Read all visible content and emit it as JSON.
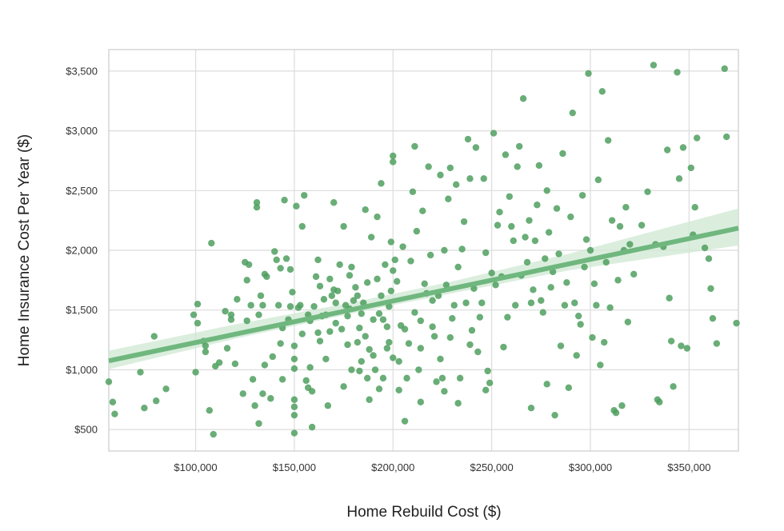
{
  "chart_data": {
    "type": "scatter",
    "title": "",
    "xlabel": "Home Rebuild Cost ($)",
    "ylabel": "Home Insurance Cost Per Year ($)",
    "xlim": [
      56000,
      375000
    ],
    "ylim": [
      320,
      3680
    ],
    "grid": true,
    "legend": "none",
    "colors": {
      "points": "#4f9f5f",
      "regression": "#6fb77e",
      "ci_band": "#cfe8d3",
      "grid": "#dcdcdc",
      "frame": "#cccccc"
    },
    "x_ticks": [
      {
        "value": 100000,
        "label": "$100,000"
      },
      {
        "value": 150000,
        "label": "$150,000"
      },
      {
        "value": 200000,
        "label": "$200,000"
      },
      {
        "value": 250000,
        "label": "$250,000"
      },
      {
        "value": 300000,
        "label": "$300,000"
      },
      {
        "value": 350000,
        "label": "$350,000"
      }
    ],
    "y_ticks": [
      {
        "value": 500,
        "label": "$500"
      },
      {
        "value": 1000,
        "label": "$1,000"
      },
      {
        "value": 1500,
        "label": "$1,500"
      },
      {
        "value": 2000,
        "label": "$2,000"
      },
      {
        "value": 2500,
        "label": "$2,500"
      },
      {
        "value": 3000,
        "label": "$3,000"
      },
      {
        "value": 3500,
        "label": "$3,500"
      }
    ],
    "regression": {
      "x": [
        56000,
        375000
      ],
      "y": [
        1075,
        2185
      ]
    },
    "ci_band": {
      "x": [
        56000,
        120000,
        180000,
        230000,
        290000,
        375000
      ],
      "lower": [
        1005,
        1260,
        1475,
        1640,
        1835,
        2040
      ],
      "upper": [
        1160,
        1380,
        1565,
        1740,
        1975,
        2350
      ]
    },
    "points": [
      [
        56000,
        900
      ],
      [
        58000,
        730
      ],
      [
        59000,
        630
      ],
      [
        72000,
        980
      ],
      [
        74000,
        680
      ],
      [
        79000,
        1280
      ],
      [
        80000,
        740
      ],
      [
        85000,
        840
      ],
      [
        99000,
        1460
      ],
      [
        100000,
        980
      ],
      [
        101000,
        1550
      ],
      [
        101000,
        1390
      ],
      [
        104000,
        1240
      ],
      [
        105000,
        1200
      ],
      [
        105000,
        1150
      ],
      [
        107000,
        660
      ],
      [
        108000,
        2060
      ],
      [
        109000,
        460
      ],
      [
        110000,
        1030
      ],
      [
        112000,
        1060
      ],
      [
        115000,
        1490
      ],
      [
        116000,
        1180
      ],
      [
        118000,
        1460
      ],
      [
        118000,
        1420
      ],
      [
        120000,
        1050
      ],
      [
        121000,
        1590
      ],
      [
        124000,
        800
      ],
      [
        125000,
        1900
      ],
      [
        126000,
        1750
      ],
      [
        127000,
        1880
      ],
      [
        128000,
        1540
      ],
      [
        129000,
        920
      ],
      [
        130000,
        700
      ],
      [
        131000,
        2400
      ],
      [
        131000,
        2360
      ],
      [
        132000,
        550
      ],
      [
        133000,
        1620
      ],
      [
        134000,
        1540
      ],
      [
        134000,
        800
      ],
      [
        135000,
        1040
      ],
      [
        135000,
        1800
      ],
      [
        136000,
        1780
      ],
      [
        138000,
        760
      ],
      [
        140000,
        1990
      ],
      [
        141000,
        1920
      ],
      [
        142000,
        1540
      ],
      [
        143000,
        1850
      ],
      [
        143000,
        1220
      ],
      [
        144000,
        920
      ],
      [
        145000,
        2420
      ],
      [
        146000,
        1930
      ],
      [
        147000,
        1420
      ],
      [
        148000,
        1840
      ],
      [
        149000,
        1650
      ],
      [
        150000,
        750
      ],
      [
        150000,
        1200
      ],
      [
        150000,
        1090
      ],
      [
        150000,
        1010
      ],
      [
        150000,
        470
      ],
      [
        150000,
        690
      ],
      [
        150000,
        620
      ],
      [
        151000,
        2370
      ],
      [
        152000,
        1520
      ],
      [
        153000,
        1540
      ],
      [
        154000,
        2200
      ],
      [
        155000,
        2460
      ],
      [
        156000,
        910
      ],
      [
        157000,
        850
      ],
      [
        158000,
        1020
      ],
      [
        158000,
        1410
      ],
      [
        159000,
        820
      ],
      [
        160000,
        1530
      ],
      [
        161000,
        1780
      ],
      [
        162000,
        1920
      ],
      [
        163000,
        1700
      ],
      [
        164000,
        1450
      ],
      [
        165000,
        1590
      ],
      [
        166000,
        1460
      ],
      [
        167000,
        700
      ],
      [
        168000,
        1760
      ],
      [
        168000,
        1320
      ],
      [
        169000,
        1620
      ],
      [
        170000,
        2400
      ],
      [
        170000,
        1670
      ],
      [
        171000,
        1560
      ],
      [
        172000,
        1660
      ],
      [
        173000,
        1880
      ],
      [
        174000,
        1340
      ],
      [
        175000,
        2200
      ],
      [
        176000,
        1540
      ],
      [
        177000,
        1450
      ],
      [
        177000,
        1210
      ],
      [
        178000,
        1790
      ],
      [
        179000,
        1860
      ],
      [
        179000,
        1000
      ],
      [
        180000,
        1580
      ],
      [
        181000,
        1690
      ],
      [
        182000,
        1620
      ],
      [
        182000,
        1230
      ],
      [
        183000,
        1350
      ],
      [
        184000,
        1070
      ],
      [
        184000,
        1470
      ],
      [
        185000,
        1560
      ],
      [
        186000,
        2340
      ],
      [
        187000,
        930
      ],
      [
        187000,
        1730
      ],
      [
        188000,
        750
      ],
      [
        189000,
        2110
      ],
      [
        190000,
        1420
      ],
      [
        190000,
        1120
      ],
      [
        191000,
        1000
      ],
      [
        192000,
        2280
      ],
      [
        192000,
        1760
      ],
      [
        193000,
        1470
      ],
      [
        194000,
        1620
      ],
      [
        194000,
        2560
      ],
      [
        195000,
        930
      ],
      [
        196000,
        1880
      ],
      [
        197000,
        1360
      ],
      [
        198000,
        1530
      ],
      [
        198000,
        1230
      ],
      [
        199000,
        2070
      ],
      [
        199000,
        1660
      ],
      [
        200000,
        2740
      ],
      [
        200000,
        2790
      ],
      [
        200000,
        1830
      ],
      [
        200000,
        1100
      ],
      [
        201000,
        1920
      ],
      [
        202000,
        1740
      ],
      [
        203000,
        1070
      ],
      [
        204000,
        1370
      ],
      [
        205000,
        2030
      ],
      [
        206000,
        570
      ],
      [
        207000,
        930
      ],
      [
        208000,
        1220
      ],
      [
        209000,
        1910
      ],
      [
        210000,
        2490
      ],
      [
        211000,
        2870
      ],
      [
        212000,
        2160
      ],
      [
        213000,
        1000
      ],
      [
        214000,
        1410
      ],
      [
        215000,
        2330
      ],
      [
        216000,
        1720
      ],
      [
        217000,
        1640
      ],
      [
        218000,
        2700
      ],
      [
        219000,
        1960
      ],
      [
        220000,
        1580
      ],
      [
        221000,
        1280
      ],
      [
        222000,
        900
      ],
      [
        223000,
        1620
      ],
      [
        224000,
        2630
      ],
      [
        225000,
        930
      ],
      [
        226000,
        2000
      ],
      [
        227000,
        1710
      ],
      [
        228000,
        2430
      ],
      [
        229000,
        2690
      ],
      [
        230000,
        1430
      ],
      [
        231000,
        1540
      ],
      [
        232000,
        2550
      ],
      [
        233000,
        1860
      ],
      [
        234000,
        930
      ],
      [
        235000,
        2010
      ],
      [
        236000,
        2240
      ],
      [
        237000,
        1560
      ],
      [
        238000,
        2930
      ],
      [
        239000,
        2600
      ],
      [
        240000,
        1330
      ],
      [
        241000,
        1680
      ],
      [
        242000,
        2860
      ],
      [
        243000,
        1150
      ],
      [
        244000,
        1440
      ],
      [
        245000,
        1560
      ],
      [
        246000,
        2600
      ],
      [
        247000,
        1980
      ],
      [
        248000,
        990
      ],
      [
        249000,
        890
      ],
      [
        250000,
        1810
      ],
      [
        251000,
        2980
      ],
      [
        252000,
        1710
      ],
      [
        253000,
        2210
      ],
      [
        254000,
        2320
      ],
      [
        255000,
        1780
      ],
      [
        256000,
        1190
      ],
      [
        257000,
        2800
      ],
      [
        258000,
        1440
      ],
      [
        259000,
        2450
      ],
      [
        260000,
        2200
      ],
      [
        261000,
        2080
      ],
      [
        262000,
        1540
      ],
      [
        263000,
        2700
      ],
      [
        264000,
        2870
      ],
      [
        265000,
        1790
      ],
      [
        266000,
        3270
      ],
      [
        267000,
        2110
      ],
      [
        268000,
        1900
      ],
      [
        269000,
        2250
      ],
      [
        270000,
        1560
      ],
      [
        271000,
        1670
      ],
      [
        272000,
        2080
      ],
      [
        273000,
        2380
      ],
      [
        274000,
        2710
      ],
      [
        275000,
        1580
      ],
      [
        276000,
        1480
      ],
      [
        277000,
        1930
      ],
      [
        278000,
        2500
      ],
      [
        279000,
        2150
      ],
      [
        280000,
        1690
      ],
      [
        281000,
        1820
      ],
      [
        282000,
        620
      ],
      [
        283000,
        2350
      ],
      [
        284000,
        1970
      ],
      [
        285000,
        1200
      ],
      [
        286000,
        2810
      ],
      [
        287000,
        1540
      ],
      [
        288000,
        1730
      ],
      [
        289000,
        850
      ],
      [
        290000,
        2280
      ],
      [
        291000,
        3150
      ],
      [
        292000,
        1560
      ],
      [
        293000,
        1120
      ],
      [
        294000,
        1450
      ],
      [
        295000,
        1380
      ],
      [
        296000,
        2460
      ],
      [
        297000,
        1860
      ],
      [
        298000,
        2090
      ],
      [
        299000,
        3480
      ],
      [
        300000,
        2000
      ],
      [
        301000,
        1270
      ],
      [
        302000,
        1720
      ],
      [
        303000,
        1540
      ],
      [
        304000,
        2590
      ],
      [
        305000,
        1040
      ],
      [
        306000,
        3330
      ],
      [
        307000,
        1230
      ],
      [
        308000,
        1900
      ],
      [
        309000,
        2920
      ],
      [
        310000,
        1520
      ],
      [
        311000,
        2250
      ],
      [
        312000,
        660
      ],
      [
        313000,
        640
      ],
      [
        314000,
        1750
      ],
      [
        315000,
        2200
      ],
      [
        316000,
        700
      ],
      [
        317000,
        2000
      ],
      [
        318000,
        2360
      ],
      [
        319000,
        1400
      ],
      [
        320000,
        2050
      ],
      [
        322000,
        1800
      ],
      [
        326000,
        2210
      ],
      [
        329000,
        2490
      ],
      [
        332000,
        3550
      ],
      [
        333000,
        2050
      ],
      [
        334000,
        750
      ],
      [
        335000,
        730
      ],
      [
        337000,
        2030
      ],
      [
        339000,
        2840
      ],
      [
        340000,
        1600
      ],
      [
        341000,
        1240
      ],
      [
        342000,
        860
      ],
      [
        344000,
        3490
      ],
      [
        345000,
        2600
      ],
      [
        346000,
        1200
      ],
      [
        347000,
        2860
      ],
      [
        349000,
        1180
      ],
      [
        351000,
        2690
      ],
      [
        352000,
        2130
      ],
      [
        353000,
        2360
      ],
      [
        354000,
        2940
      ],
      [
        358000,
        2020
      ],
      [
        360000,
        1930
      ],
      [
        361000,
        1680
      ],
      [
        362000,
        1430
      ],
      [
        364000,
        1220
      ],
      [
        368000,
        3520
      ],
      [
        369000,
        2950
      ],
      [
        374000,
        1390
      ],
      [
        224000,
        1090
      ],
      [
        214000,
        730
      ],
      [
        226000,
        820
      ],
      [
        233000,
        720
      ],
      [
        247000,
        830
      ],
      [
        270000,
        680
      ],
      [
        278000,
        880
      ],
      [
        159000,
        520
      ],
      [
        175000,
        860
      ],
      [
        163000,
        1240
      ],
      [
        178000,
        1510
      ],
      [
        186000,
        1280
      ],
      [
        195000,
        1420
      ],
      [
        206000,
        1340
      ],
      [
        214000,
        1180
      ],
      [
        171000,
        1390
      ],
      [
        188000,
        1170
      ],
      [
        197000,
        1180
      ],
      [
        166000,
        1090
      ],
      [
        154000,
        1300
      ],
      [
        144000,
        1350
      ],
      [
        139000,
        1110
      ],
      [
        211000,
        1480
      ],
      [
        220000,
        1360
      ],
      [
        229000,
        1270
      ],
      [
        239000,
        1210
      ],
      [
        183000,
        990
      ],
      [
        193000,
        840
      ],
      [
        203000,
        830
      ],
      [
        162000,
        1310
      ],
      [
        157000,
        1460
      ],
      [
        148000,
        1530
      ],
      [
        132000,
        1460
      ],
      [
        126000,
        1410
      ]
    ]
  }
}
